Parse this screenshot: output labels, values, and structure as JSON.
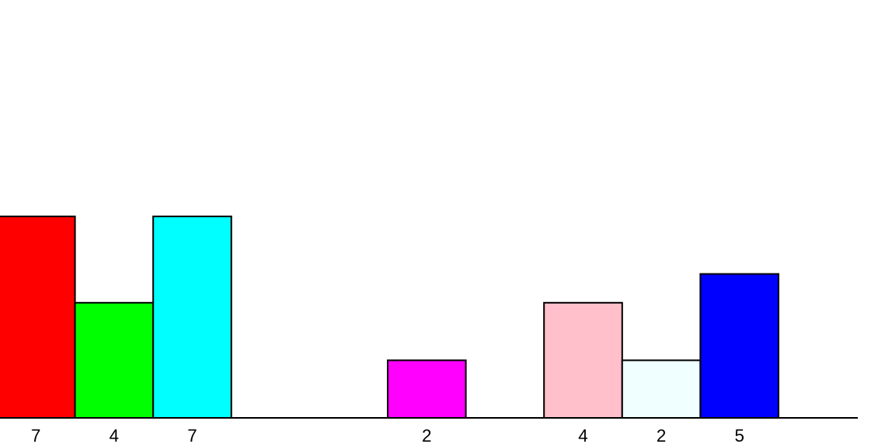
{
  "chart_data": {
    "type": "bar",
    "title": "",
    "xlabel": "",
    "ylabel": "",
    "ylim": [
      0,
      14
    ],
    "grid": false,
    "legend": "none",
    "slots": 11,
    "bars": [
      {
        "slot": 0,
        "value": 7,
        "label": "7",
        "color": "#ff0000"
      },
      {
        "slot": 1,
        "value": 4,
        "label": "4",
        "color": "#00ff00"
      },
      {
        "slot": 2,
        "value": 7,
        "label": "7",
        "color": "#00ffff"
      },
      {
        "slot": 5,
        "value": 2,
        "label": "2",
        "color": "#ff00ff"
      },
      {
        "slot": 7,
        "value": 4,
        "label": "4",
        "color": "#ffc0cb"
      },
      {
        "slot": 8,
        "value": 2,
        "label": "2",
        "color": "#f0ffff"
      },
      {
        "slot": 9,
        "value": 5,
        "label": "5",
        "color": "#0000ff"
      }
    ]
  }
}
